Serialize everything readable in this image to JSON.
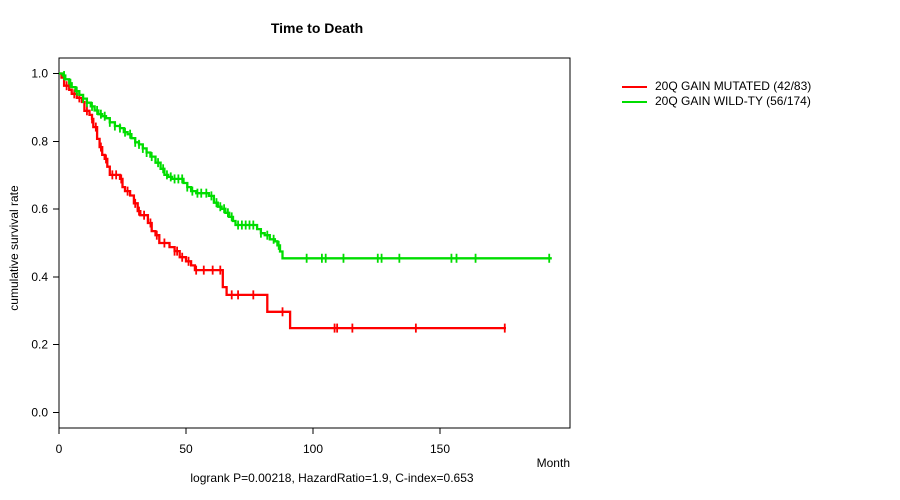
{
  "chart_data": {
    "type": "line",
    "subtype": "kaplan-meier-step",
    "title": "Time to Death",
    "xlabel": "Month",
    "ylabel": "cumulative survival rate",
    "footnote": "logrank P=0.00218, HazardRatio=1.9, C-index=0.653",
    "xlim": [
      0,
      201
    ],
    "ylim": [
      0.0,
      1.0
    ],
    "x_ticks": [
      0,
      50,
      100,
      150
    ],
    "y_ticks": [
      0.0,
      0.2,
      0.4,
      0.6,
      0.8,
      1.0
    ],
    "grid": false,
    "legend_position": "right-outside",
    "axis_color": "#000000",
    "series": [
      {
        "name": "20Q GAIN MUTATED (42/83)",
        "color": "#ff0000",
        "end_month": 176,
        "steps": [
          [
            0,
            1.0
          ],
          [
            1,
            0.988
          ],
          [
            2,
            0.964
          ],
          [
            4,
            0.952
          ],
          [
            5,
            0.94
          ],
          [
            7,
            0.928
          ],
          [
            9,
            0.916
          ],
          [
            10,
            0.89
          ],
          [
            12,
            0.878
          ],
          [
            13,
            0.866
          ],
          [
            13.5,
            0.842
          ],
          [
            15,
            0.807
          ],
          [
            16,
            0.783
          ],
          [
            17,
            0.76
          ],
          [
            18,
            0.748
          ],
          [
            19,
            0.725
          ],
          [
            20,
            0.701
          ],
          [
            24,
            0.689
          ],
          [
            25,
            0.665
          ],
          [
            26,
            0.653
          ],
          [
            28,
            0.64
          ],
          [
            29.5,
            0.617
          ],
          [
            31,
            0.594
          ],
          [
            32,
            0.582
          ],
          [
            35,
            0.559
          ],
          [
            36.5,
            0.535
          ],
          [
            38,
            0.523
          ],
          [
            39.5,
            0.5
          ],
          [
            43.5,
            0.488
          ],
          [
            45.5,
            0.476
          ],
          [
            47.5,
            0.458
          ],
          [
            50,
            0.446
          ],
          [
            52,
            0.434
          ],
          [
            53.5,
            0.42
          ],
          [
            64.5,
            0.37
          ],
          [
            66,
            0.347
          ],
          [
            82,
            0.297
          ],
          [
            91,
            0.249
          ]
        ],
        "censor_months": [
          3,
          6,
          8,
          11,
          13,
          14.5,
          16.5,
          18.5,
          21,
          22.5,
          24.5,
          27,
          30,
          31.5,
          33.5,
          36,
          38.5,
          41.5,
          45.5,
          46.5,
          48.5,
          51,
          54,
          57,
          60.5,
          63.5,
          68,
          70.5,
          76.5,
          88,
          108.5,
          109.5,
          115.5,
          140.5,
          175.5
        ]
      },
      {
        "name": "20Q GAIN WILD-TY (56/174)",
        "color": "#00dd00",
        "end_month": 194,
        "steps": [
          [
            0,
            1.0
          ],
          [
            1.5,
            0.994
          ],
          [
            2.5,
            0.983
          ],
          [
            4,
            0.971
          ],
          [
            5,
            0.96
          ],
          [
            6.5,
            0.948
          ],
          [
            8,
            0.937
          ],
          [
            9.5,
            0.926
          ],
          [
            11,
            0.914
          ],
          [
            12.5,
            0.903
          ],
          [
            14,
            0.891
          ],
          [
            15.5,
            0.88
          ],
          [
            17,
            0.874
          ],
          [
            18.5,
            0.868
          ],
          [
            20,
            0.856
          ],
          [
            22,
            0.845
          ],
          [
            24,
            0.839
          ],
          [
            25.5,
            0.827
          ],
          [
            27,
            0.821
          ],
          [
            28.5,
            0.809
          ],
          [
            30,
            0.797
          ],
          [
            31.5,
            0.791
          ],
          [
            33,
            0.779
          ],
          [
            34.5,
            0.767
          ],
          [
            36,
            0.755
          ],
          [
            38,
            0.737
          ],
          [
            40,
            0.719
          ],
          [
            41.5,
            0.701
          ],
          [
            43,
            0.695
          ],
          [
            44.5,
            0.689
          ],
          [
            49,
            0.677
          ],
          [
            50.5,
            0.665
          ],
          [
            52,
            0.653
          ],
          [
            54,
            0.647
          ],
          [
            59,
            0.639
          ],
          [
            61,
            0.619
          ],
          [
            62.5,
            0.607
          ],
          [
            64,
            0.601
          ],
          [
            65.5,
            0.589
          ],
          [
            67,
            0.577
          ],
          [
            68.5,
            0.565
          ],
          [
            69.5,
            0.553
          ],
          [
            78,
            0.541
          ],
          [
            79.5,
            0.529
          ],
          [
            81,
            0.523
          ],
          [
            83,
            0.511
          ],
          [
            85,
            0.505
          ],
          [
            86,
            0.493
          ],
          [
            87,
            0.475
          ],
          [
            88,
            0.455
          ]
        ],
        "censor_months": [
          2,
          4.5,
          7,
          9.5,
          11,
          13,
          15,
          16.5,
          18,
          20,
          22,
          24,
          26,
          28,
          30,
          31.5,
          33,
          34.5,
          36.5,
          39,
          41,
          42.5,
          44,
          45.5,
          47,
          48.5,
          50.5,
          52.5,
          54.5,
          56,
          58,
          60,
          62,
          63.5,
          65,
          66.5,
          68,
          70.5,
          72,
          73.5,
          75,
          76.5,
          79.5,
          82,
          84.5,
          86.5,
          97.5,
          103.5,
          105,
          112,
          125.5,
          127,
          134,
          154.5,
          156.5,
          164,
          193
        ]
      }
    ]
  }
}
